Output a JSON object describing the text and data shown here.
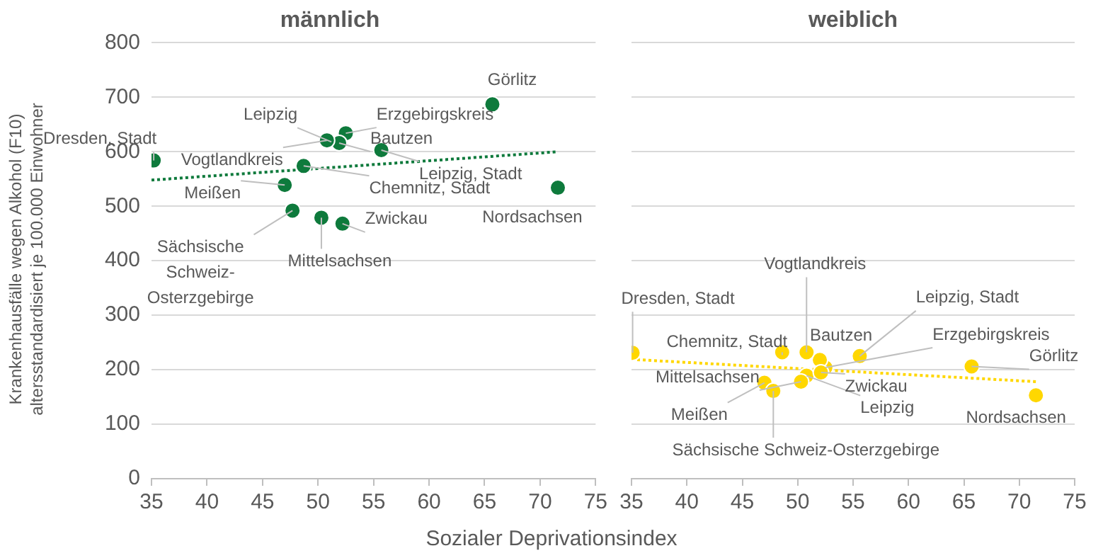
{
  "chart_data": [
    {
      "type": "scatter",
      "title": "männlich",
      "xlabel": "Sozialer Deprivationsindex",
      "ylabel": "Krankenhausfälle wegen Alkohol (F10)\naltersstandardisiert je 100.000 Einwohner",
      "xlim": [
        35,
        75
      ],
      "xticks": [
        35,
        40,
        45,
        50,
        55,
        60,
        65,
        70,
        75
      ],
      "ylim": [
        0,
        800
      ],
      "yticks": [
        0,
        100,
        200,
        300,
        400,
        500,
        600,
        700,
        800
      ],
      "grid": "y",
      "marker": "circle",
      "legend": false,
      "series": [
        {
          "color": "#0e7a3c",
          "x": [
            35.2,
            65.7,
            null,
            52.5,
            51.9,
            50.8,
            55.7,
            48.7,
            47.0,
            71.6,
            52.2,
            50.3,
            47.7
          ],
          "values": [
            584,
            687,
            null,
            634,
            616,
            621,
            603,
            574,
            539,
            534,
            468,
            479,
            492
          ]
        },
        {
          "type": "line",
          "color": "#0e7a3c",
          "line_style": "dotted",
          "marker": "none",
          "x": [
            35,
            71.6
          ],
          "values": [
            548,
            600
          ]
        }
      ],
      "annotations": [
        {
          "text": "Dresden, Stadt",
          "x": 35.2,
          "y": 584
        },
        {
          "text": "Görlitz",
          "x": 65.7,
          "y": 687
        },
        {
          "text": "Leipzig",
          "x": 51.2,
          "y": 618
        },
        {
          "text": "Erzgebirgskreis",
          "x": 52.5,
          "y": 634
        },
        {
          "text": "Bautzen",
          "x": 51.9,
          "y": 616
        },
        {
          "text": "Vogtlandkreis",
          "x": 50.8,
          "y": 621
        },
        {
          "text": "Leipzig, Stadt",
          "x": 55.7,
          "y": 603
        },
        {
          "text": "Chemnitz, Stadt",
          "x": 48.7,
          "y": 574
        },
        {
          "text": "Meißen",
          "x": 47.0,
          "y": 539
        },
        {
          "text": "Nordsachsen",
          "x": 71.6,
          "y": 534
        },
        {
          "text": "Zwickau",
          "x": 52.2,
          "y": 468
        },
        {
          "text": "Mittelsachsen",
          "x": 50.3,
          "y": 479
        },
        {
          "text": "Sächsische Schweiz-Osterzgebirge",
          "x": 47.7,
          "y": 492
        }
      ]
    },
    {
      "type": "scatter",
      "title": "weiblich",
      "xlim": [
        35,
        75
      ],
      "xticks": [
        35,
        40,
        45,
        50,
        55,
        60,
        65,
        70,
        75
      ],
      "ylim": [
        0,
        800
      ],
      "yticks": [
        0,
        100,
        200,
        300,
        400,
        500,
        600,
        700,
        800
      ],
      "tick_labels": "x",
      "grid": "y",
      "marker": "circle",
      "legend": false,
      "series": [
        {
          "color": "#ffd700",
          "x": [
            35.1,
            65.7,
            50.8,
            52.5,
            52.0,
            50.8,
            55.6,
            48.6,
            47.0,
            71.5,
            52.1,
            50.3,
            47.8
          ],
          "values": [
            231,
            206,
            189,
            204,
            218,
            232,
            225,
            232,
            176,
            153,
            195,
            178,
            161
          ]
        },
        {
          "type": "line",
          "color": "#ffd700",
          "line_style": "dotted",
          "marker": "none",
          "x": [
            35,
            71.5
          ],
          "values": [
            219,
            178
          ]
        }
      ],
      "annotations": [
        {
          "text": "Dresden, Stadt",
          "x": 35.1,
          "y": 231
        },
        {
          "text": "Görlitz",
          "x": 65.7,
          "y": 206
        },
        {
          "text": "Leipzig",
          "x": 50.8,
          "y": 189
        },
        {
          "text": "Erzgebirgskreis",
          "x": 52.5,
          "y": 204
        },
        {
          "text": "Bautzen",
          "x": 52.0,
          "y": 218
        },
        {
          "text": "Vogtlandkreis",
          "x": 50.8,
          "y": 232
        },
        {
          "text": "Leipzig, Stadt",
          "x": 55.6,
          "y": 225
        },
        {
          "text": "Chemnitz, Stadt",
          "x": 48.6,
          "y": 232
        },
        {
          "text": "Meißen",
          "x": 47.0,
          "y": 176
        },
        {
          "text": "Nordsachsen",
          "x": 71.5,
          "y": 153
        },
        {
          "text": "Zwickau",
          "x": 52.1,
          "y": 195
        },
        {
          "text": "Mittelsachsen",
          "x": 50.3,
          "y": 178
        },
        {
          "text": "Sächsische Schweiz-Osterzgebirge",
          "x": 47.8,
          "y": 161
        }
      ]
    }
  ]
}
